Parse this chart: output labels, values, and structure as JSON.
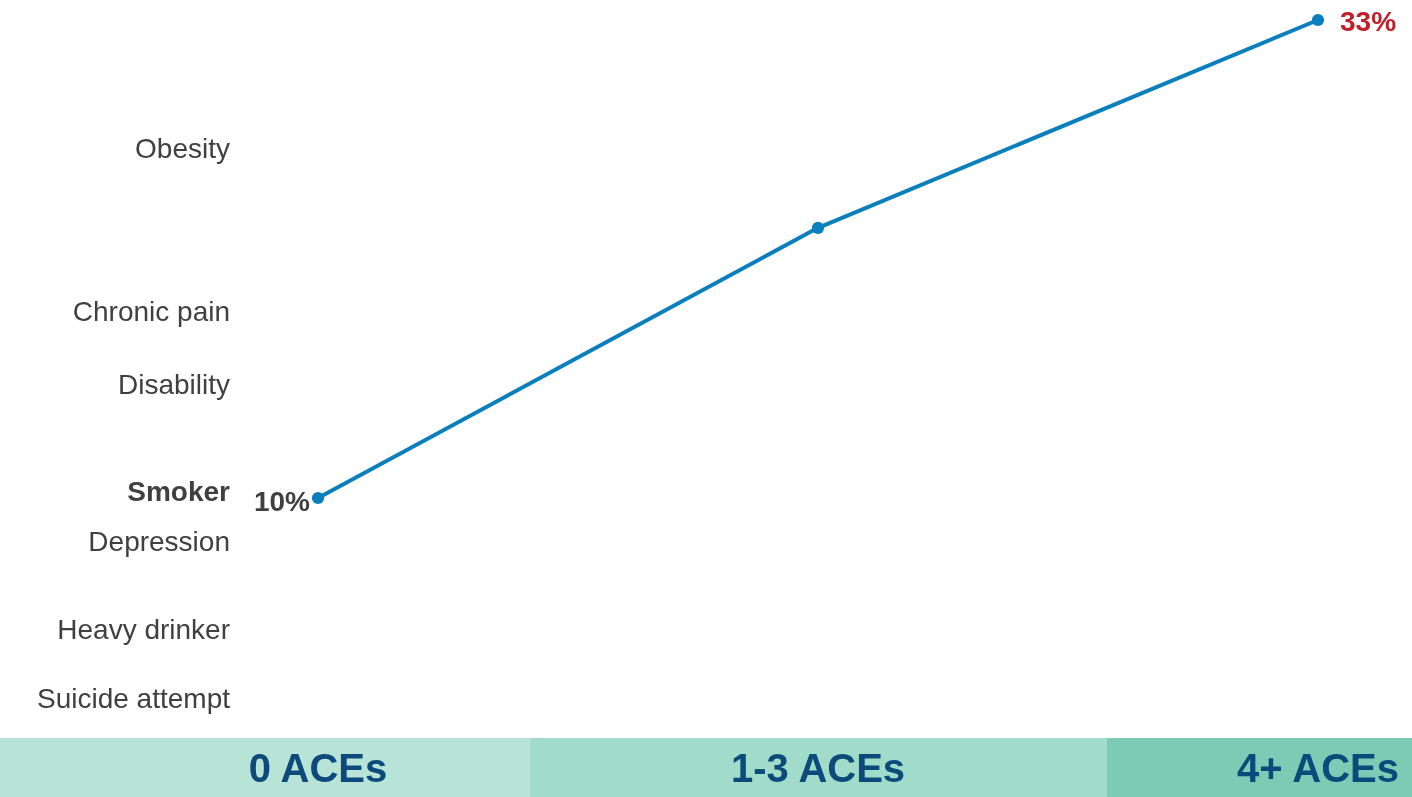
{
  "chart_data": {
    "type": "line",
    "categories": [
      "0 ACEs",
      "1-3 ACEs",
      "4+ ACEs"
    ],
    "series": [
      {
        "color": "#0a7fbd",
        "values": [
          10,
          23,
          33
        ],
        "value_labels": [
          "10%",
          null,
          "33%"
        ]
      }
    ],
    "marker": "circle",
    "line_style": "solid",
    "grid": false,
    "annotations": [
      "Obesity",
      "Chronic pain",
      "Disability",
      "Smoker",
      "Depression",
      "Heavy drinker",
      "Suicide attempt"
    ]
  }
}
